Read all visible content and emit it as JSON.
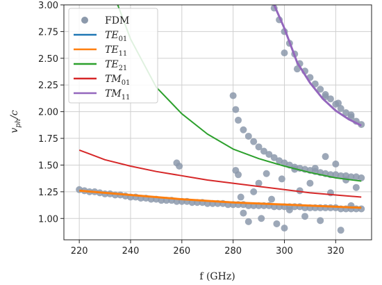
{
  "chart_data": {
    "type": "line",
    "xlabel": "f (GHz)",
    "ylabel_main": "v",
    "ylabel_sub": "ph",
    "ylabel_rest": "/c",
    "xlim": [
      214,
      334
    ],
    "ylim": [
      0.8,
      3.0
    ],
    "xticks": [
      "220",
      "240",
      "260",
      "280",
      "300",
      "320"
    ],
    "yticks": [
      "1.00",
      "1.25",
      "1.50",
      "1.75",
      "2.00",
      "2.25",
      "2.50",
      "2.75",
      "3.00"
    ],
    "grid": true,
    "legend_position": "top-left",
    "colors": {
      "FDM": "#8c99ab",
      "TE01": "#1f77b4",
      "TE11": "#ff7f0e",
      "TE21": "#2ca02c",
      "TM01": "#d62728",
      "TM11": "#9467bd"
    },
    "legend": [
      {
        "key": "FDM",
        "label": "FDM",
        "sub": "",
        "kind": "marker"
      },
      {
        "key": "TE01",
        "label": "TE",
        "sub": "01",
        "kind": "line"
      },
      {
        "key": "TE11",
        "label": "TE",
        "sub": "11",
        "kind": "line"
      },
      {
        "key": "TE21",
        "label": "TE",
        "sub": "21",
        "kind": "line"
      },
      {
        "key": "TM01",
        "label": "TM",
        "sub": "01",
        "kind": "line"
      },
      {
        "key": "TM11",
        "label": "TM",
        "sub": "11",
        "kind": "line"
      }
    ],
    "series": [
      {
        "key": "TE01",
        "x": [
          220,
          240,
          260,
          280,
          300,
          320,
          330
        ],
        "y": [
          1.26,
          1.22,
          1.18,
          1.15,
          1.13,
          1.11,
          1.1
        ]
      },
      {
        "key": "TE11",
        "x": [
          220,
          240,
          260,
          280,
          300,
          320,
          330
        ],
        "y": [
          1.26,
          1.22,
          1.18,
          1.15,
          1.13,
          1.11,
          1.1
        ]
      },
      {
        "key": "TE21",
        "x": [
          235,
          240,
          250,
          260,
          270,
          280,
          290,
          300,
          310,
          320,
          330
        ],
        "y": [
          3.0,
          2.68,
          2.23,
          1.98,
          1.79,
          1.65,
          1.56,
          1.49,
          1.43,
          1.38,
          1.35
        ]
      },
      {
        "key": "TM01",
        "x": [
          220,
          230,
          240,
          250,
          260,
          270,
          280,
          290,
          300,
          310,
          320,
          330
        ],
        "y": [
          1.64,
          1.55,
          1.49,
          1.44,
          1.4,
          1.36,
          1.33,
          1.3,
          1.27,
          1.24,
          1.22,
          1.2
        ]
      },
      {
        "key": "TM11",
        "x": [
          296,
          300,
          305,
          310,
          315,
          320,
          325,
          330
        ],
        "y": [
          3.0,
          2.78,
          2.46,
          2.27,
          2.12,
          2.01,
          1.93,
          1.87
        ]
      }
    ],
    "fdm_points": {
      "x": [
        220,
        222,
        224,
        226,
        228,
        230,
        232,
        234,
        236,
        238,
        240,
        242,
        244,
        246,
        248,
        250,
        252,
        254,
        256,
        258,
        260,
        262,
        264,
        266,
        268,
        270,
        272,
        274,
        276,
        278,
        280,
        282,
        284,
        286,
        288,
        290,
        292,
        294,
        296,
        298,
        300,
        302,
        304,
        306,
        308,
        310,
        312,
        314,
        316,
        318,
        320,
        322,
        324,
        326,
        328,
        330,
        258,
        259,
        281,
        282,
        283,
        284,
        286,
        288,
        290,
        291,
        293,
        295,
        297,
        299,
        300,
        302,
        304,
        306,
        308,
        310,
        312,
        314,
        316,
        318,
        320,
        322,
        324,
        326,
        328,
        280,
        281,
        282,
        284,
        286,
        288,
        290,
        292,
        294,
        296,
        298,
        300,
        302,
        304,
        306,
        308,
        310,
        312,
        314,
        316,
        318,
        320,
        322,
        324,
        326,
        328,
        330,
        296,
        298,
        300,
        302,
        304,
        306,
        308,
        310,
        312,
        314,
        316,
        318,
        320,
        322,
        324,
        326,
        328,
        330,
        300,
        305,
        316,
        321,
        326
      ],
      "y": [
        1.27,
        1.26,
        1.25,
        1.25,
        1.24,
        1.23,
        1.23,
        1.22,
        1.22,
        1.21,
        1.2,
        1.2,
        1.19,
        1.19,
        1.18,
        1.18,
        1.17,
        1.17,
        1.17,
        1.16,
        1.16,
        1.16,
        1.15,
        1.15,
        1.15,
        1.14,
        1.14,
        1.14,
        1.14,
        1.13,
        1.13,
        1.13,
        1.13,
        1.12,
        1.12,
        1.12,
        1.12,
        1.12,
        1.11,
        1.11,
        1.11,
        1.11,
        1.11,
        1.11,
        1.1,
        1.1,
        1.1,
        1.1,
        1.1,
        1.1,
        1.1,
        1.09,
        1.09,
        1.09,
        1.09,
        1.09,
        1.52,
        1.49,
        1.45,
        1.41,
        1.2,
        1.05,
        0.97,
        1.25,
        1.33,
        1.0,
        1.42,
        1.18,
        0.95,
        1.37,
        0.91,
        1.08,
        1.46,
        1.26,
        1.02,
        1.33,
        1.47,
        0.98,
        1.58,
        1.24,
        1.51,
        0.89,
        1.36,
        1.12,
        1.29,
        2.15,
        2.02,
        1.92,
        1.83,
        1.77,
        1.72,
        1.67,
        1.63,
        1.6,
        1.57,
        1.54,
        1.52,
        1.5,
        1.48,
        1.47,
        1.46,
        1.45,
        1.44,
        1.43,
        1.42,
        1.41,
        1.41,
        1.4,
        1.4,
        1.39,
        1.39,
        1.38,
        2.97,
        2.86,
        2.75,
        2.64,
        2.54,
        2.45,
        2.38,
        2.32,
        2.26,
        2.21,
        2.16,
        2.12,
        2.07,
        2.03,
        1.99,
        1.95,
        1.91,
        1.88,
        2.55,
        2.4,
        2.14,
        2.08,
        1.97
      ]
    }
  }
}
